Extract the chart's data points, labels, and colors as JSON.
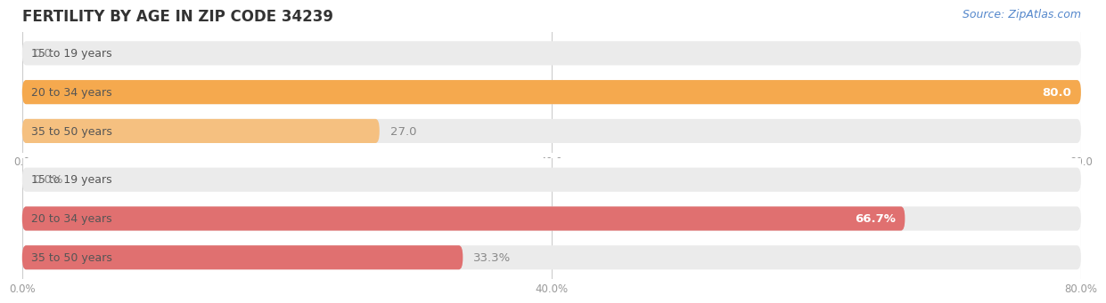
{
  "title": "FERTILITY BY AGE IN ZIP CODE 34239",
  "source": "Source: ZipAtlas.com",
  "top_group": {
    "categories": [
      "15 to 19 years",
      "20 to 34 years",
      "35 to 50 years"
    ],
    "values": [
      0.0,
      80.0,
      27.0
    ],
    "xlim": [
      0.0,
      80.0
    ],
    "xticks": [
      0.0,
      40.0,
      80.0
    ],
    "xtick_labels": [
      "0.0",
      "40.0",
      "80.0"
    ],
    "bar_colors": [
      "#f5c9a0",
      "#f5a94e",
      "#f5c080"
    ],
    "bar_bg_color": "#ebebeb",
    "value_suffix": ""
  },
  "bottom_group": {
    "categories": [
      "15 to 19 years",
      "20 to 34 years",
      "35 to 50 years"
    ],
    "values": [
      0.0,
      66.7,
      33.3
    ],
    "xlim": [
      0.0,
      80.0
    ],
    "xticks": [
      0.0,
      40.0,
      80.0
    ],
    "xtick_labels": [
      "0.0%",
      "40.0%",
      "80.0%"
    ],
    "bar_colors": [
      "#f0b8b8",
      "#e07070",
      "#e07070"
    ],
    "bar_bg_color": "#ebebeb",
    "value_suffix": "%"
  },
  "bg_color": "#ffffff",
  "bar_height": 0.62,
  "title_fontsize": 12,
  "label_fontsize": 9.5,
  "tick_fontsize": 8.5,
  "category_fontsize": 9,
  "source_fontsize": 9,
  "title_color": "#333333",
  "category_text_color": "#555555",
  "value_color_inside": "#ffffff",
  "value_color_outside": "#888888"
}
